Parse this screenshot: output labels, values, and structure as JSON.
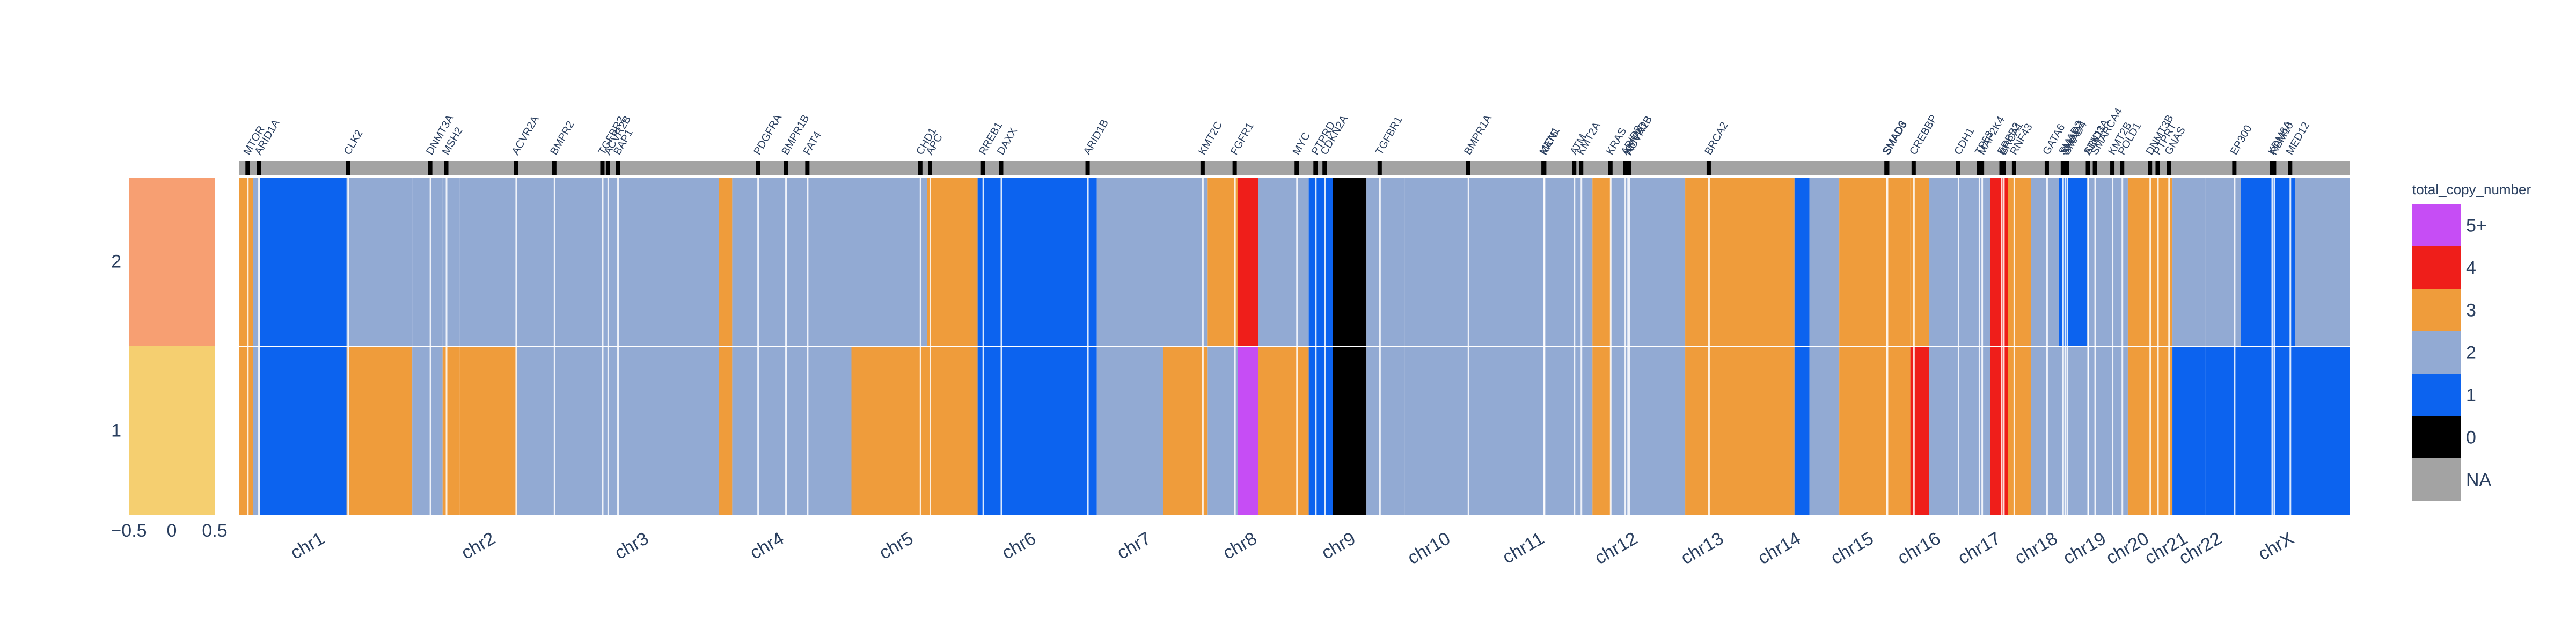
{
  "chart_data": {
    "type": "heatmap",
    "legend_title": "total_copy_number",
    "legend_position": "right",
    "legend": [
      {
        "label": "5+",
        "color": "#c64df5"
      },
      {
        "label": "4",
        "color": "#ef1e1a"
      },
      {
        "label": "3",
        "color": "#ef9c3b"
      },
      {
        "label": "2",
        "color": "#92aad3"
      },
      {
        "label": "1",
        "color": "#0c63ef"
      },
      {
        "label": "0",
        "color": "#000000"
      },
      {
        "label": "NA",
        "color": "#a3a3a3"
      }
    ],
    "rows": [
      "2",
      "1"
    ],
    "side_panel": {
      "x_ticks": [
        "−0.5",
        "0",
        "0.5"
      ],
      "xlim": [
        -0.5,
        0.5
      ],
      "row_colors": [
        "#f79f72",
        "#f5cf70"
      ]
    },
    "chromosomes": [
      {
        "name": "chr1",
        "start": 0,
        "end": 248
      },
      {
        "name": "chr2",
        "start": 248,
        "end": 490
      },
      {
        "name": "chr3",
        "start": 490,
        "end": 688
      },
      {
        "name": "chr4",
        "start": 688,
        "end": 878
      },
      {
        "name": "chr5",
        "start": 878,
        "end": 1059
      },
      {
        "name": "chr6",
        "start": 1059,
        "end": 1230
      },
      {
        "name": "chr7",
        "start": 1230,
        "end": 1389
      },
      {
        "name": "chr8",
        "start": 1389,
        "end": 1534
      },
      {
        "name": "chr9",
        "start": 1534,
        "end": 1672
      },
      {
        "name": "chr10",
        "start": 1672,
        "end": 1806
      },
      {
        "name": "chr11",
        "start": 1806,
        "end": 1941
      },
      {
        "name": "chr12",
        "start": 1941,
        "end": 2074
      },
      {
        "name": "chr13",
        "start": 2074,
        "end": 2188
      },
      {
        "name": "chr14",
        "start": 2188,
        "end": 2295
      },
      {
        "name": "chr15",
        "start": 2295,
        "end": 2397
      },
      {
        "name": "chr16",
        "start": 2397,
        "end": 2487
      },
      {
        "name": "chr17",
        "start": 2487,
        "end": 2570
      },
      {
        "name": "chr18",
        "start": 2570,
        "end": 2650
      },
      {
        "name": "chr19",
        "start": 2650,
        "end": 2709
      },
      {
        "name": "chr20",
        "start": 2709,
        "end": 2773
      },
      {
        "name": "chr21",
        "start": 2773,
        "end": 2820
      },
      {
        "name": "chr22",
        "start": 2820,
        "end": 2871
      },
      {
        "name": "chrX",
        "start": 2871,
        "end": 3027
      }
    ],
    "genes": [
      {
        "name": "MTOR",
        "pos": 11
      },
      {
        "name": "ARID1A",
        "pos": 27
      },
      {
        "name": "CLK2",
        "pos": 155
      },
      {
        "name": "DNMT3A",
        "pos": 273
      },
      {
        "name": "MSH2",
        "pos": 296
      },
      {
        "name": "ACVR2A",
        "pos": 396
      },
      {
        "name": "BMPR2",
        "pos": 451
      },
      {
        "name": "TGFBR2",
        "pos": 520
      },
      {
        "name": "ACVR2B",
        "pos": 528
      },
      {
        "name": "BAP1",
        "pos": 542
      },
      {
        "name": "PDGFRA",
        "pos": 743
      },
      {
        "name": "BMPR1B",
        "pos": 783
      },
      {
        "name": "FAT4",
        "pos": 814
      },
      {
        "name": "CHD1",
        "pos": 976
      },
      {
        "name": "APC",
        "pos": 990
      },
      {
        "name": "RREB1",
        "pos": 1066
      },
      {
        "name": "DAXX",
        "pos": 1092
      },
      {
        "name": "ARID1B",
        "pos": 1216
      },
      {
        "name": "KMT2C",
        "pos": 1381
      },
      {
        "name": "FGFR1",
        "pos": 1427
      },
      {
        "name": "MYC",
        "pos": 1516
      },
      {
        "name": "PTPRD",
        "pos": 1543
      },
      {
        "name": "CDKN2A",
        "pos": 1556
      },
      {
        "name": "TGFBR1",
        "pos": 1635
      },
      {
        "name": "BMPR1A",
        "pos": 1762
      },
      {
        "name": "MEN1",
        "pos": 1870
      },
      {
        "name": "KAT5",
        "pos": 1871
      },
      {
        "name": "ATM",
        "pos": 1914
      },
      {
        "name": "KMT2A",
        "pos": 1924
      },
      {
        "name": "KRAS",
        "pos": 1966
      },
      {
        "name": "ARID2",
        "pos": 1987
      },
      {
        "name": "KMT2D",
        "pos": 1991
      },
      {
        "name": "ACVR1B",
        "pos": 1993
      },
      {
        "name": "BRCA2",
        "pos": 2107
      },
      {
        "name": "SMAD6",
        "pos": 2362
      },
      {
        "name": "SMAD3",
        "pos": 2363
      },
      {
        "name": "CREBBP",
        "pos": 2401
      },
      {
        "name": "CDH1",
        "pos": 2465
      },
      {
        "name": "TP53",
        "pos": 2495
      },
      {
        "name": "MAP2K4",
        "pos": 2499
      },
      {
        "name": "ERBB2",
        "pos": 2527
      },
      {
        "name": "BRCA1",
        "pos": 2530
      },
      {
        "name": "RNF43",
        "pos": 2545
      },
      {
        "name": "GATA6",
        "pos": 2592
      },
      {
        "name": "SMAD2",
        "pos": 2615
      },
      {
        "name": "SMAD7",
        "pos": 2618
      },
      {
        "name": "SMAD4",
        "pos": 2621
      },
      {
        "name": "STK11",
        "pos": 2651
      },
      {
        "name": "SMARCA4",
        "pos": 2661
      },
      {
        "name": "KMT2B",
        "pos": 2686
      },
      {
        "name": "ARID3A",
        "pos": 2651
      },
      {
        "name": "POLD1",
        "pos": 2700
      },
      {
        "name": "DNMT3B",
        "pos": 2740
      },
      {
        "name": "PTPRT",
        "pos": 2751
      },
      {
        "name": "GNAS",
        "pos": 2767
      },
      {
        "name": "EP300",
        "pos": 2861
      },
      {
        "name": "KDM6A",
        "pos": 2915
      },
      {
        "name": "RBM10",
        "pos": 2918
      },
      {
        "name": "MED12",
        "pos": 2941
      }
    ]
  }
}
